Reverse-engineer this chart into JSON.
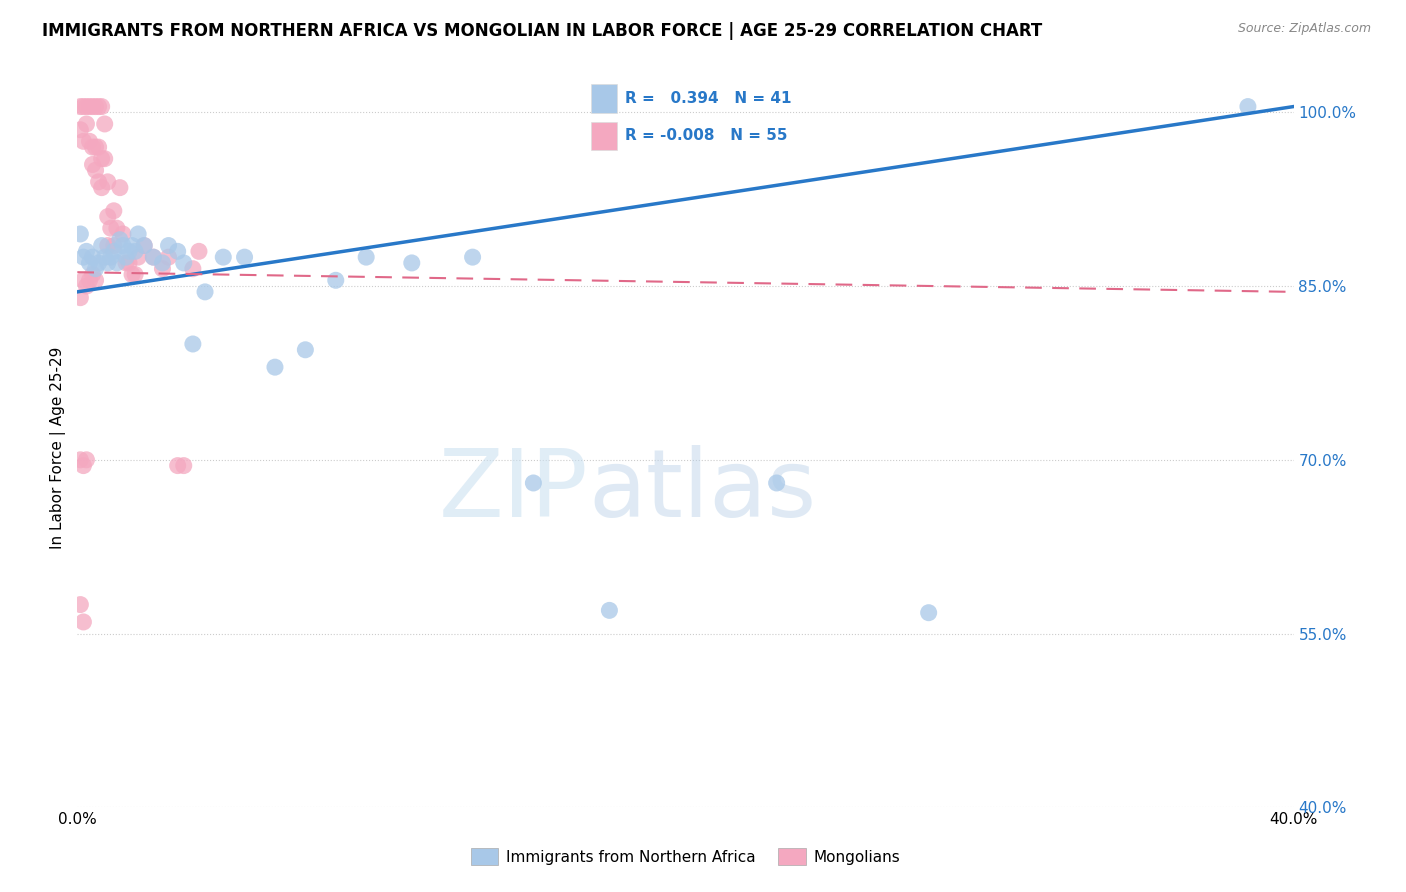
{
  "title": "IMMIGRANTS FROM NORTHERN AFRICA VS MONGOLIAN IN LABOR FORCE | AGE 25-29 CORRELATION CHART",
  "source": "Source: ZipAtlas.com",
  "ylabel": "In Labor Force | Age 25-29",
  "xlim": [
    0.0,
    0.4
  ],
  "ylim": [
    0.4,
    1.02
  ],
  "yticks": [
    0.4,
    0.55,
    0.7,
    0.85,
    1.0
  ],
  "ytick_labels": [
    "40.0%",
    "55.0%",
    "70.0%",
    "85.0%",
    "100.0%"
  ],
  "xticks": [
    0.0,
    0.05,
    0.1,
    0.15,
    0.2,
    0.25,
    0.3,
    0.35,
    0.4
  ],
  "blue_R": 0.394,
  "blue_N": 41,
  "pink_R": -0.008,
  "pink_N": 55,
  "blue_color": "#a8c8e8",
  "pink_color": "#f4a8c0",
  "blue_line_color": "#2878c8",
  "pink_line_color": "#e06888",
  "grid_color": "#cccccc",
  "watermark_zip": "ZIP",
  "watermark_atlas": "atlas",
  "blue_scatter_x": [
    0.001,
    0.002,
    0.003,
    0.004,
    0.005,
    0.006,
    0.007,
    0.008,
    0.009,
    0.01,
    0.011,
    0.012,
    0.013,
    0.014,
    0.015,
    0.016,
    0.017,
    0.018,
    0.019,
    0.02,
    0.022,
    0.025,
    0.028,
    0.03,
    0.033,
    0.035,
    0.038,
    0.042,
    0.048,
    0.055,
    0.065,
    0.075,
    0.085,
    0.095,
    0.11,
    0.13,
    0.15,
    0.175,
    0.23,
    0.28,
    0.385
  ],
  "blue_scatter_y": [
    0.895,
    0.875,
    0.88,
    0.87,
    0.875,
    0.865,
    0.87,
    0.885,
    0.875,
    0.87,
    0.875,
    0.88,
    0.87,
    0.89,
    0.885,
    0.875,
    0.88,
    0.885,
    0.88,
    0.895,
    0.885,
    0.875,
    0.87,
    0.885,
    0.88,
    0.87,
    0.8,
    0.845,
    0.875,
    0.875,
    0.78,
    0.795,
    0.855,
    0.875,
    0.87,
    0.875,
    0.68,
    0.57,
    0.68,
    0.568,
    1.005
  ],
  "pink_scatter_x": [
    0.001,
    0.001,
    0.002,
    0.002,
    0.003,
    0.003,
    0.004,
    0.004,
    0.005,
    0.005,
    0.005,
    0.006,
    0.006,
    0.006,
    0.007,
    0.007,
    0.007,
    0.008,
    0.008,
    0.008,
    0.009,
    0.009,
    0.01,
    0.01,
    0.01,
    0.011,
    0.012,
    0.012,
    0.013,
    0.014,
    0.015,
    0.016,
    0.017,
    0.018,
    0.019,
    0.02,
    0.022,
    0.025,
    0.028,
    0.03,
    0.033,
    0.035,
    0.038,
    0.04,
    0.001,
    0.002,
    0.003,
    0.004,
    0.005,
    0.006,
    0.001,
    0.002,
    0.003,
    0.001,
    0.002
  ],
  "pink_scatter_y": [
    1.005,
    0.985,
    1.005,
    0.975,
    1.005,
    0.99,
    1.005,
    0.975,
    1.005,
    0.97,
    0.955,
    1.005,
    0.97,
    0.95,
    1.005,
    0.97,
    0.94,
    1.005,
    0.96,
    0.935,
    0.99,
    0.96,
    0.94,
    0.91,
    0.885,
    0.9,
    0.915,
    0.885,
    0.9,
    0.935,
    0.895,
    0.87,
    0.87,
    0.86,
    0.86,
    0.875,
    0.885,
    0.875,
    0.865,
    0.875,
    0.695,
    0.695,
    0.865,
    0.88,
    0.84,
    0.855,
    0.85,
    0.855,
    0.86,
    0.855,
    0.7,
    0.695,
    0.7,
    0.575,
    0.56
  ],
  "blue_line_x0": 0.0,
  "blue_line_y0": 0.845,
  "blue_line_x1": 0.4,
  "blue_line_y1": 1.005,
  "pink_line_x0": 0.0,
  "pink_line_y0": 0.862,
  "pink_line_x1": 0.4,
  "pink_line_y1": 0.845
}
